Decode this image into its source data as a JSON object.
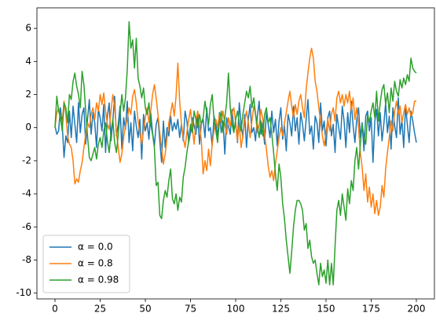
{
  "chart_data": {
    "type": "line",
    "x": [
      0,
      1,
      2,
      3,
      4,
      5,
      6,
      7,
      8,
      9,
      10,
      11,
      12,
      13,
      14,
      15,
      16,
      17,
      18,
      19,
      20,
      21,
      22,
      23,
      24,
      25,
      26,
      27,
      28,
      29,
      30,
      31,
      32,
      33,
      34,
      35,
      36,
      37,
      38,
      39,
      40,
      41,
      42,
      43,
      44,
      45,
      46,
      47,
      48,
      49,
      50,
      51,
      52,
      53,
      54,
      55,
      56,
      57,
      58,
      59,
      60,
      61,
      62,
      63,
      64,
      65,
      66,
      67,
      68,
      69,
      70,
      71,
      72,
      73,
      74,
      75,
      76,
      77,
      78,
      79,
      80,
      81,
      82,
      83,
      84,
      85,
      86,
      87,
      88,
      89,
      90,
      91,
      92,
      93,
      94,
      95,
      96,
      97,
      98,
      99,
      100,
      101,
      102,
      103,
      104,
      105,
      106,
      107,
      108,
      109,
      110,
      111,
      112,
      113,
      114,
      115,
      116,
      117,
      118,
      119,
      120,
      121,
      122,
      123,
      124,
      125,
      126,
      127,
      128,
      129,
      130,
      131,
      132,
      133,
      134,
      135,
      136,
      137,
      138,
      139,
      140,
      141,
      142,
      143,
      144,
      145,
      146,
      147,
      148,
      149,
      150,
      151,
      152,
      153,
      154,
      155,
      156,
      157,
      158,
      159,
      160,
      161,
      162,
      163,
      164,
      165,
      166,
      167,
      168,
      169,
      170,
      171,
      172,
      173,
      174,
      175,
      176,
      177,
      178,
      179,
      180,
      181,
      182,
      183,
      184,
      185,
      186,
      187,
      188,
      189,
      190,
      191,
      192,
      193,
      194,
      195,
      196,
      197,
      198,
      199,
      200
    ],
    "series": [
      {
        "name": "α = 0.0",
        "color": "#1f77b4",
        "values": [
          0.1,
          -0.4,
          -0.2,
          1.2,
          0.2,
          -1.8,
          -0.5,
          -0.9,
          1.0,
          -0.6,
          1.3,
          0.2,
          -0.9,
          1.5,
          -0.3,
          0.8,
          1.2,
          -1.0,
          0.5,
          1.7,
          -0.4,
          0.9,
          0.3,
          -1.2,
          1.1,
          0.6,
          -0.2,
          1.4,
          -1.5,
          0.7,
          1.5,
          -0.8,
          0.4,
          1.9,
          -0.5,
          0.2,
          1.3,
          -1.3,
          0.6,
          -0.1,
          1.6,
          -0.9,
          0.3,
          -1.4,
          1.0,
          0.1,
          -0.6,
          0.5,
          -1.9,
          0.8,
          -0.2,
          0.3,
          -0.7,
          0.9,
          -0.3,
          -1.1,
          0.2,
          0.6,
          -0.8,
          -2.1,
          0.4,
          -1.2,
          0.0,
          -0.5,
          0.7,
          -0.2,
          0.3,
          -0.1,
          0.5,
          -0.6,
          0.2,
          -0.8,
          1.0,
          0.4,
          -0.9,
          -0.3,
          0.6,
          0.1,
          -0.4,
          0.8,
          -1.0,
          0.3,
          0.5,
          -0.6,
          1.2,
          -0.2,
          0.0,
          -1.1,
          0.7,
          0.2,
          -0.5,
          0.9,
          -0.3,
          0.4,
          -1.6,
          0.6,
          0.1,
          -0.4,
          1.1,
          -0.2,
          0.3,
          -0.9,
          1.5,
          0.2,
          -0.6,
          0.8,
          -1.2,
          0.5,
          1.4,
          -0.3,
          0.0,
          -0.8,
          0.7,
          1.6,
          -0.4,
          0.3,
          -1.0,
          0.9,
          0.2,
          -0.6,
          1.0,
          -0.3,
          0.5,
          -1.1,
          0.4,
          1.2,
          -0.7,
          0.1,
          -1.4,
          0.8,
          0.3,
          -0.5,
          1.3,
          -0.2,
          0.6,
          -1.0,
          0.9,
          0.2,
          -0.8,
          0.5,
          1.7,
          -0.4,
          0.1,
          -1.3,
          0.7,
          0.3,
          -0.9,
          1.5,
          -0.2,
          0.4,
          -1.1,
          0.6,
          1.0,
          -0.5,
          0.2,
          -1.5,
          0.8,
          0.0,
          -0.7,
          1.3,
          0.4,
          -1.2,
          0.9,
          -0.3,
          1.6,
          0.1,
          -0.9,
          0.5,
          1.2,
          -0.6,
          0.3,
          -1.4,
          0.7,
          1.0,
          -0.2,
          0.6,
          -2.1,
          0.4,
          1.1,
          -0.5,
          0.9,
          -0.8,
          0.2,
          1.5,
          -0.3,
          0.7,
          -1.3,
          1.2,
          0.1,
          -0.6,
          1.8,
          -0.4,
          0.5,
          -1.2,
          1.3,
          0.2,
          -0.9,
          1.0,
          0.4,
          -0.3,
          -0.9
        ]
      },
      {
        "name": "α = 0.8",
        "color": "#ff7f0e",
        "values": [
          0.0,
          0.9,
          1.2,
          0.5,
          0.3,
          1.6,
          0.8,
          -0.5,
          -1.0,
          -1.2,
          -2.0,
          -3.4,
          -3.1,
          -3.3,
          -2.6,
          -2.1,
          -1.2,
          -0.4,
          0.3,
          0.0,
          0.8,
          1.2,
          0.5,
          1.5,
          1.0,
          2.0,
          1.4,
          2.1,
          1.0,
          0.2,
          -0.1,
          1.0,
          2.0,
          1.3,
          -0.3,
          -1.2,
          -2.1,
          -1.6,
          -0.6,
          0.1,
          0.5,
          1.2,
          0.8,
          1.9,
          2.3,
          1.5,
          0.4,
          -0.4,
          -1.0,
          -0.2,
          0.6,
          1.2,
          0.3,
          1.0,
          2.0,
          2.6,
          1.8,
          0.8,
          -0.3,
          -1.2,
          -2.2,
          -1.6,
          -0.6,
          0.3,
          0.9,
          1.5,
          0.7,
          1.9,
          3.9,
          1.6,
          0.2,
          -0.6,
          -1.2,
          -0.3,
          0.5,
          1.1,
          0.0,
          -1.0,
          0.4,
          1.0,
          0.2,
          -0.8,
          -2.8,
          -2.0,
          -2.6,
          -1.3,
          -2.3,
          -1.0,
          -0.2,
          0.5,
          0.0,
          0.8,
          0.3,
          1.0,
          0.2,
          -0.4,
          0.6,
          0.1,
          0.9,
          1.2,
          0.3,
          -0.8,
          0.2,
          -1.2,
          -0.5,
          0.4,
          1.0,
          0.3,
          -0.6,
          0.4,
          1.3,
          0.8,
          -0.3,
          0.2,
          1.1,
          0.5,
          -0.4,
          -1.3,
          -2.3,
          -3.0,
          -2.6,
          -3.2,
          -2.2,
          -1.4,
          -0.6,
          0.0,
          -0.5,
          0.3,
          0.9,
          1.6,
          2.2,
          1.3,
          0.6,
          1.4,
          0.8,
          1.6,
          2.0,
          1.2,
          0.6,
          2.3,
          3.3,
          4.2,
          4.8,
          4.2,
          2.8,
          2.2,
          1.2,
          0.4,
          -0.5,
          -1.1,
          -0.3,
          0.5,
          -0.2,
          0.8,
          1.2,
          0.4,
          1.8,
          2.2,
          1.5,
          2.0,
          1.3,
          2.0,
          1.5,
          2.2,
          1.0,
          1.8,
          0.5,
          1.2,
          0.0,
          -1.5,
          -2.4,
          -3.8,
          -2.8,
          -4.5,
          -3.6,
          -4.8,
          -4.0,
          -5.2,
          -4.4,
          -5.3,
          -4.8,
          -3.5,
          -4.2,
          -2.5,
          -1.5,
          -0.6,
          0.4,
          -0.2,
          1.0,
          1.6,
          0.8,
          1.3,
          0.3,
          0.9,
          1.4,
          0.8,
          1.2,
          0.7,
          0.9,
          1.6,
          1.6
        ]
      },
      {
        "name": "α = 0.98",
        "color": "#2ca02c",
        "values": [
          0.0,
          1.9,
          1.0,
          0.6,
          -0.2,
          1.5,
          1.2,
          0.3,
          2.0,
          1.7,
          2.8,
          3.3,
          2.5,
          2.0,
          1.2,
          3.4,
          2.6,
          1.0,
          -0.5,
          -1.8,
          -2.0,
          -1.6,
          -1.2,
          -1.9,
          -1.0,
          -0.6,
          -1.2,
          -0.2,
          0.3,
          -0.8,
          -1.5,
          -0.3,
          0.5,
          -0.9,
          -1.5,
          -0.4,
          0.8,
          2.0,
          1.0,
          1.8,
          3.5,
          6.4,
          4.8,
          5.3,
          3.6,
          5.4,
          3.0,
          2.5,
          1.8,
          2.4,
          1.2,
          0.8,
          1.5,
          0.2,
          -0.4,
          -1.2,
          -3.5,
          -3.3,
          -5.3,
          -5.5,
          -4.4,
          -3.8,
          -4.2,
          -3.2,
          -2.5,
          -4.3,
          -4.6,
          -4.0,
          -5.0,
          -4.2,
          -4.5,
          -3.0,
          -2.4,
          -1.5,
          -0.8,
          0.2,
          -0.3,
          1.0,
          0.5,
          0.0,
          0.8,
          0.2,
          0.6,
          1.6,
          0.9,
          0.2,
          1.4,
          2.0,
          0.5,
          -0.2,
          -0.9,
          0.4,
          1.0,
          -0.3,
          0.6,
          1.5,
          3.3,
          1.2,
          0.2,
          -0.3,
          0.5,
          1.0,
          0.3,
          -0.2,
          0.8,
          1.5,
          2.2,
          1.8,
          2.5,
          1.2,
          1.8,
          0.8,
          0.1,
          -0.6,
          0.4,
          -0.5,
          0.8,
          1.2,
          0.3,
          0.6,
          -0.4,
          -1.5,
          -2.8,
          -3.8,
          -2.2,
          -3.0,
          -4.6,
          -5.5,
          -6.8,
          -7.8,
          -8.8,
          -7.5,
          -6.0,
          -5.0,
          -4.4,
          -4.4,
          -4.6,
          -5.0,
          -6.2,
          -5.8,
          -7.3,
          -6.8,
          -7.8,
          -8.2,
          -8.0,
          -8.8,
          -9.5,
          -8.2,
          -9.0,
          -8.6,
          -9.4,
          -8.0,
          -9.5,
          -8.2,
          -9.5,
          -7.2,
          -5.0,
          -4.4,
          -5.3,
          -4.0,
          -4.8,
          -5.6,
          -3.7,
          -4.6,
          -3.2,
          -3.8,
          -2.0,
          -1.2,
          -2.5,
          -1.0,
          0.2,
          -0.5,
          -1.0,
          0.8,
          0.3,
          1.0,
          1.5,
          0.6,
          2.2,
          0.4,
          1.5,
          2.3,
          2.6,
          1.4,
          2.1,
          0.9,
          2.4,
          1.6,
          2.8,
          2.2,
          1.9,
          2.9,
          2.4,
          3.0,
          2.6,
          3.2,
          2.8,
          4.2,
          3.6,
          3.4,
          3.3
        ]
      }
    ],
    "xlim": [
      -10,
      210
    ],
    "xticks": [
      0,
      25,
      50,
      75,
      100,
      125,
      150,
      175,
      200
    ],
    "ylim": [
      -10.35,
      7.24
    ],
    "yticks": [
      -10,
      -8,
      -6,
      -4,
      -2,
      0,
      2,
      4,
      6
    ],
    "legend": "lower left"
  }
}
